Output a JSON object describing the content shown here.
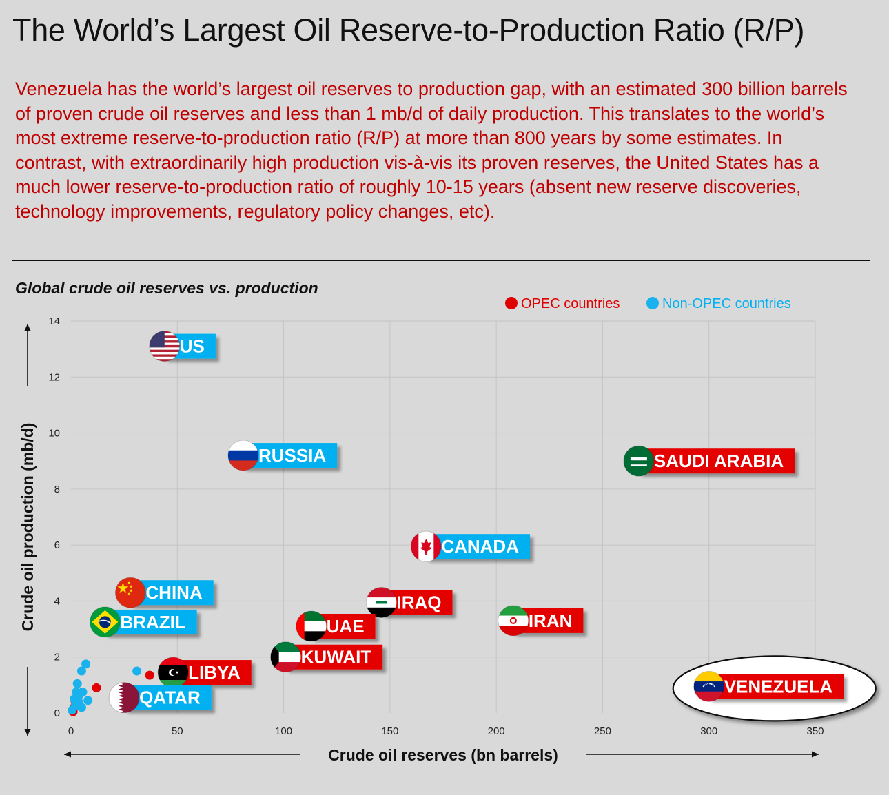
{
  "title": "The World’s Largest Oil Reserve-to-Production Ratio (R/P)",
  "intro": "Venezuela has the world’s largest oil reserves to production gap, with an estimated 300 billion barrels of proven crude oil reserves and less than 1 mb/d of daily production. This translates to the world’s most extreme reserve-to-production ratio (R/P) at more than 800 years by some estimates.  In contrast, with extraordinarily high production vis-à-vis its proven reserves, the United States has a much lower reserve-to-production ratio of roughly 10-15 years (absent new reserve discoveries, technology improvements, regulatory policy changes, etc).",
  "chart_data": {
    "type": "scatter",
    "title": "Global crude oil reserves vs. production",
    "xlabel": "Crude oil reserves (bn barrels)",
    "ylabel": "Crude oil production (mb/d)",
    "xlim": [
      0,
      350
    ],
    "ylim": [
      0,
      14
    ],
    "xticks": [
      0,
      50,
      100,
      150,
      200,
      250,
      300,
      350
    ],
    "yticks": [
      0,
      2,
      4,
      6,
      8,
      10,
      12,
      14
    ],
    "grid": true,
    "legend_position": "top-right",
    "legend": [
      {
        "label": "OPEC countries",
        "color": "#e00000"
      },
      {
        "label": "Non-OPEC countries",
        "color": "#19b2ec"
      }
    ],
    "labeled_points": [
      {
        "name": "US",
        "x": 44,
        "y": 13.1,
        "group": "Non-OPEC",
        "flag": "us-flag"
      },
      {
        "name": "RUSSIA",
        "x": 81,
        "y": 9.2,
        "group": "Non-OPEC",
        "flag": "russia-flag"
      },
      {
        "name": "SAUDI ARABIA",
        "x": 267,
        "y": 9.0,
        "group": "OPEC",
        "flag": "saudi-arabia-flag"
      },
      {
        "name": "CANADA",
        "x": 167,
        "y": 5.95,
        "group": "Non-OPEC",
        "flag": "canada-flag"
      },
      {
        "name": "CHINA",
        "x": 28,
        "y": 4.3,
        "group": "Non-OPEC",
        "flag": "china-flag"
      },
      {
        "name": "IRAQ",
        "x": 146,
        "y": 3.95,
        "group": "OPEC",
        "flag": "iraq-flag"
      },
      {
        "name": "IRAN",
        "x": 208,
        "y": 3.3,
        "group": "OPEC",
        "flag": "iran-flag"
      },
      {
        "name": "BRAZIL",
        "x": 16,
        "y": 3.25,
        "group": "Non-OPEC",
        "flag": "brazil-flag"
      },
      {
        "name": "UAE",
        "x": 113,
        "y": 3.1,
        "group": "OPEC",
        "flag": "uae-flag"
      },
      {
        "name": "KUWAIT",
        "x": 101,
        "y": 2.0,
        "group": "OPEC",
        "flag": "kuwait-flag"
      },
      {
        "name": "LIBYA",
        "x": 48,
        "y": 1.45,
        "group": "OPEC",
        "flag": "libya-flag"
      },
      {
        "name": "VENEZUELA",
        "x": 300,
        "y": 0.95,
        "group": "OPEC",
        "flag": "venezuela-flag",
        "highlighted": true
      },
      {
        "name": "QATAR",
        "x": 25,
        "y": 0.55,
        "group": "Non-OPEC",
        "flag": "qatar-flag"
      }
    ],
    "small_points": [
      {
        "x": 12,
        "y": 0.9,
        "group": "OPEC"
      },
      {
        "x": 37,
        "y": 1.35,
        "group": "OPEC"
      },
      {
        "x": 2,
        "y": 0.4,
        "group": "OPEC"
      },
      {
        "x": 1.5,
        "y": 0.2,
        "group": "OPEC"
      },
      {
        "x": 1,
        "y": 0.05,
        "group": "OPEC"
      },
      {
        "x": 7,
        "y": 1.75,
        "group": "Non-OPEC"
      },
      {
        "x": 5,
        "y": 1.5,
        "group": "Non-OPEC"
      },
      {
        "x": 3,
        "y": 1.05,
        "group": "Non-OPEC"
      },
      {
        "x": 31,
        "y": 1.5,
        "group": "Non-OPEC"
      },
      {
        "x": 2.5,
        "y": 0.75,
        "group": "Non-OPEC"
      },
      {
        "x": 4,
        "y": 0.65,
        "group": "Non-OPEC"
      },
      {
        "x": 5.5,
        "y": 0.75,
        "group": "Non-OPEC"
      },
      {
        "x": 8,
        "y": 0.45,
        "group": "Non-OPEC"
      },
      {
        "x": 1.5,
        "y": 0.5,
        "group": "Non-OPEC"
      },
      {
        "x": 3.5,
        "y": 0.4,
        "group": "Non-OPEC"
      },
      {
        "x": 5,
        "y": 0.2,
        "group": "Non-OPEC"
      },
      {
        "x": 2,
        "y": 0.25,
        "group": "Non-OPEC"
      },
      {
        "x": 0.5,
        "y": 0.1,
        "group": "Non-OPEC"
      }
    ]
  },
  "colors": {
    "opec": "#e00000",
    "nonopec": "#19b2ec",
    "label_opec_bg": "#e50000",
    "label_nonopec_bg": "#00b0f0",
    "grid": "#c4c4c4",
    "intro_text": "#c00000"
  }
}
